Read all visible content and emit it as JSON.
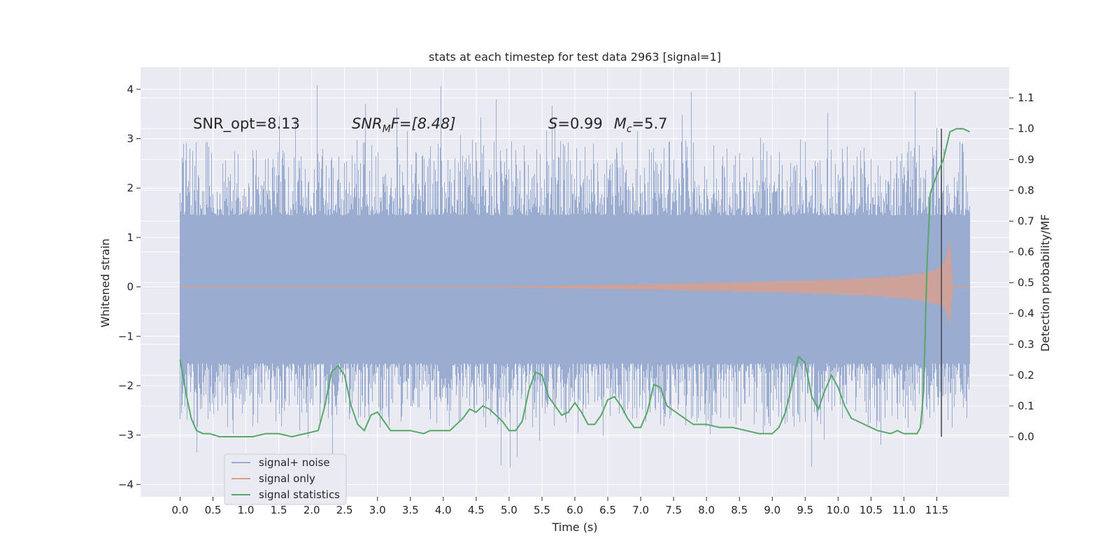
{
  "chart_data": {
    "type": "line",
    "title": "stats at each timestep for test data 2963 [signal=1]",
    "xlabel": "Time (s)",
    "ylabel_left": "Whitened strain",
    "ylabel_right": "Detection probability/MF",
    "xlim": [
      -0.6,
      12.6
    ],
    "ylim_left": [
      -4.25,
      4.45
    ],
    "ylim_right": [
      -0.195,
      1.2
    ],
    "x_ticks": [
      "0.0",
      "0.5",
      "1.0",
      "1.5",
      "2.0",
      "2.5",
      "3.0",
      "3.5",
      "4.0",
      "4.5",
      "5.0",
      "5.5",
      "6.0",
      "6.5",
      "7.0",
      "7.5",
      "8.0",
      "8.5",
      "9.0",
      "9.5",
      "10.0",
      "10.5",
      "11.0",
      "11.5"
    ],
    "y_ticks_left": [
      "−4",
      "−3",
      "−2",
      "−1",
      "0",
      "1",
      "2",
      "3",
      "4"
    ],
    "y_ticks_right": [
      "0.0",
      "0.1",
      "0.2",
      "0.3",
      "0.4",
      "0.5",
      "0.6",
      "0.7",
      "0.8",
      "0.9",
      "1.0",
      "1.1"
    ],
    "grid": true,
    "legend_position": "lower-left",
    "colors": {
      "plot_bg": "#eaeaf2",
      "grid": "#ffffff",
      "noise": "#9aacd0",
      "signal": "#d5a090",
      "stats": "#55a868",
      "marker": "#444444"
    },
    "annotations": {
      "snr_opt": "SNR_opt=8.13",
      "snr_mf_label": "SNR",
      "snr_mf_sub": "M",
      "snr_mf_rest": "F=[8.48]",
      "s_label": "S",
      "s_rest": "=0.99",
      "mc_label": "M",
      "mc_sub": "c",
      "mc_rest": "=5.7"
    },
    "series": [
      {
        "name": "signal+ noise",
        "note_type": "noise-envelope",
        "x_range": [
          0.0,
          12.0
        ],
        "y_typical": [
          -1.55,
          1.45
        ],
        "y_min": -3.7,
        "y_max": 4.1
      },
      {
        "name": "signal only",
        "x": [
          0.0,
          5.0,
          6.0,
          7.0,
          8.0,
          9.0,
          10.0,
          10.5,
          11.0,
          11.3,
          11.5,
          11.62,
          11.7,
          11.75,
          12.0
        ],
        "y_envelope": [
          0.01,
          0.01,
          0.03,
          0.05,
          0.08,
          0.11,
          0.15,
          0.18,
          0.23,
          0.28,
          0.35,
          0.5,
          0.95,
          0.0,
          0.0
        ]
      },
      {
        "name": "signal statistics",
        "x": [
          0.0,
          0.1,
          0.17,
          0.25,
          0.35,
          0.45,
          0.6,
          0.8,
          1.0,
          1.1,
          1.3,
          1.5,
          1.7,
          1.9,
          2.1,
          2.2,
          2.3,
          2.4,
          2.5,
          2.6,
          2.7,
          2.8,
          2.9,
          3.0,
          3.1,
          3.2,
          3.3,
          3.5,
          3.7,
          3.8,
          4.0,
          4.1,
          4.3,
          4.4,
          4.5,
          4.6,
          4.7,
          4.8,
          4.9,
          5.0,
          5.1,
          5.2,
          5.3,
          5.4,
          5.5,
          5.6,
          5.8,
          5.9,
          6.0,
          6.1,
          6.2,
          6.3,
          6.4,
          6.5,
          6.6,
          6.7,
          6.8,
          6.9,
          7.0,
          7.1,
          7.2,
          7.3,
          7.4,
          7.6,
          7.8,
          8.0,
          8.2,
          8.4,
          8.6,
          8.8,
          9.0,
          9.1,
          9.2,
          9.3,
          9.4,
          9.5,
          9.6,
          9.7,
          9.8,
          9.9,
          10.0,
          10.1,
          10.2,
          10.4,
          10.5,
          10.6,
          10.8,
          10.9,
          11.0,
          11.1,
          11.2,
          11.25,
          11.3,
          11.35,
          11.4,
          11.5,
          11.6,
          11.7,
          11.8,
          11.9,
          12.0
        ],
        "y": [
          0.25,
          0.13,
          0.06,
          0.02,
          0.01,
          0.01,
          0.0,
          0.0,
          0.0,
          0.0,
          0.01,
          0.01,
          0.0,
          0.01,
          0.02,
          0.1,
          0.21,
          0.23,
          0.2,
          0.1,
          0.04,
          0.02,
          0.07,
          0.08,
          0.05,
          0.02,
          0.02,
          0.02,
          0.01,
          0.02,
          0.02,
          0.02,
          0.06,
          0.09,
          0.08,
          0.1,
          0.09,
          0.07,
          0.05,
          0.02,
          0.02,
          0.05,
          0.15,
          0.21,
          0.2,
          0.13,
          0.07,
          0.08,
          0.11,
          0.08,
          0.04,
          0.04,
          0.07,
          0.12,
          0.13,
          0.1,
          0.06,
          0.03,
          0.03,
          0.08,
          0.17,
          0.16,
          0.1,
          0.07,
          0.04,
          0.04,
          0.03,
          0.03,
          0.02,
          0.01,
          0.01,
          0.03,
          0.08,
          0.17,
          0.26,
          0.24,
          0.13,
          0.09,
          0.15,
          0.2,
          0.16,
          0.1,
          0.06,
          0.04,
          0.03,
          0.02,
          0.01,
          0.02,
          0.01,
          0.01,
          0.01,
          0.03,
          0.15,
          0.55,
          0.79,
          0.85,
          0.9,
          0.99,
          1.0,
          1.0,
          0.99
        ]
      }
    ],
    "marker_line_x": 11.57
  }
}
